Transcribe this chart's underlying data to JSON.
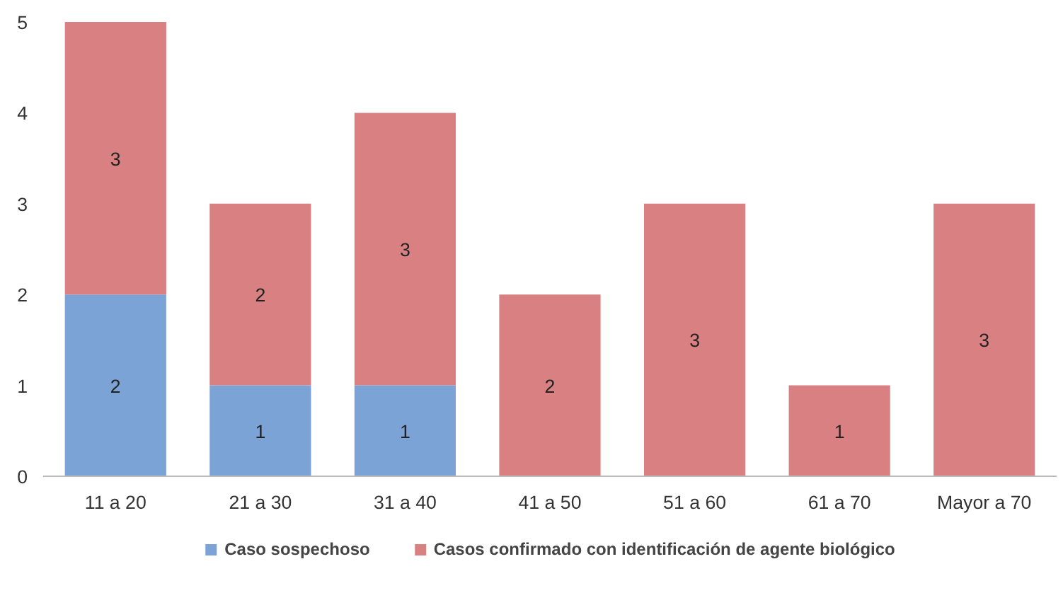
{
  "chart_data": {
    "type": "bar",
    "stacked": true,
    "categories": [
      "11 a 20",
      "21 a 30",
      "31 a 40",
      "41 a 50",
      "51 a 60",
      "61 a 70",
      "Mayor a 70"
    ],
    "series": [
      {
        "name": "Caso sospechoso",
        "color": "#7ba3d6",
        "values": [
          2,
          1,
          1,
          null,
          null,
          null,
          null
        ]
      },
      {
        "name": "Casos confirmado con identificación de agente biológico",
        "color": "#d98182",
        "values": [
          3,
          2,
          3,
          2,
          3,
          1,
          3
        ]
      }
    ],
    "ylim": [
      0,
      5
    ],
    "yticks": [
      0,
      1,
      2,
      3,
      4,
      5
    ],
    "grid": false,
    "legend": "bottom",
    "data_labels": true
  }
}
